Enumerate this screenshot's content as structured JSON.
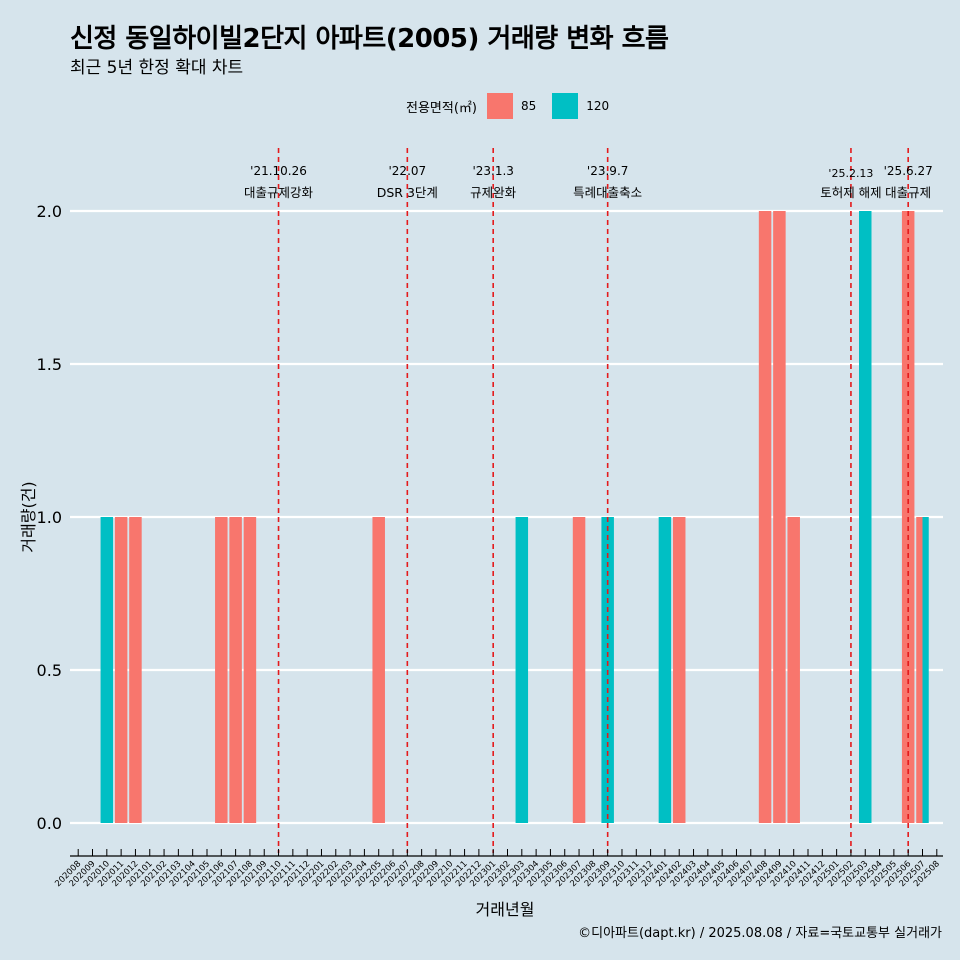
{
  "title": "신정 동일하이빌2단지 아파트(2005) 거래량 변화 흐름",
  "subtitle": "최근 5년 한정 확대 차트",
  "caption": "©디아파트(dapt.kr) / 2025.08.08 / 자료=국토교통부 실거래가",
  "legend": {
    "title": "전용면적(㎡)",
    "items": [
      {
        "label": "85",
        "color": "#f8766d"
      },
      {
        "label": "120",
        "color": "#00bfc4"
      }
    ]
  },
  "chart_data": {
    "type": "bar",
    "xlabel": "거래년월",
    "ylabel": "거래량(건)",
    "ylim": [
      0,
      2
    ],
    "y_ticks": [
      "0.0",
      "0.5",
      "1.0",
      "1.5",
      "2.0"
    ],
    "categories": [
      "202008",
      "202009",
      "202010",
      "202011",
      "202012",
      "202101",
      "202102",
      "202103",
      "202104",
      "202105",
      "202106",
      "202107",
      "202108",
      "202109",
      "202110",
      "202111",
      "202112",
      "202201",
      "202202",
      "202203",
      "202204",
      "202205",
      "202206",
      "202207",
      "202208",
      "202209",
      "202210",
      "202211",
      "202212",
      "202301",
      "202302",
      "202303",
      "202304",
      "202305",
      "202306",
      "202307",
      "202308",
      "202309",
      "202310",
      "202311",
      "202312",
      "202401",
      "202402",
      "202403",
      "202404",
      "202405",
      "202406",
      "202407",
      "202408",
      "202409",
      "202410",
      "202411",
      "202412",
      "202501",
      "202502",
      "202503",
      "202504",
      "202505",
      "202506",
      "202507",
      "202508"
    ],
    "series": [
      {
        "name": "85",
        "color": "#f8766d",
        "values": [
          0,
          0,
          0,
          1,
          1,
          0,
          0,
          0,
          0,
          0,
          1,
          1,
          1,
          0,
          0,
          0,
          0,
          0,
          0,
          0,
          0,
          1,
          0,
          0,
          0,
          0,
          0,
          0,
          0,
          0,
          0,
          0,
          0,
          0,
          0,
          1,
          0,
          0,
          0,
          0,
          0,
          0,
          1,
          0,
          0,
          0,
          0,
          0,
          2,
          2,
          1,
          0,
          0,
          0,
          0,
          0,
          0,
          0,
          2,
          1,
          0
        ]
      },
      {
        "name": "120",
        "color": "#00bfc4",
        "values": [
          0,
          0,
          1,
          0,
          0,
          0,
          0,
          0,
          0,
          0,
          0,
          0,
          0,
          0,
          0,
          0,
          0,
          0,
          0,
          0,
          0,
          0,
          0,
          0,
          0,
          0,
          0,
          0,
          0,
          0,
          0,
          1,
          0,
          0,
          0,
          0,
          0,
          1,
          0,
          0,
          0,
          1,
          0,
          0,
          0,
          0,
          0,
          0,
          0,
          0,
          0,
          0,
          0,
          0,
          0,
          2,
          0,
          0,
          0,
          1,
          0
        ]
      }
    ],
    "events": [
      {
        "date_label": "'21.10.26",
        "name": "대출규제강화",
        "x": "202110"
      },
      {
        "date_label": "'22.07",
        "name": "DSR 3단계",
        "x": "202207"
      },
      {
        "date_label": "'23.1.3",
        "name": "규제완화",
        "x": "202301"
      },
      {
        "date_label": "'23.9.7",
        "name": "특례대출축소",
        "x": "202309"
      },
      {
        "date_label": "'25.2.13",
        "name": "토허제 해제",
        "x": "202502"
      },
      {
        "date_label": "'25.6.27",
        "name": "대출규제",
        "x": "202506"
      }
    ]
  }
}
